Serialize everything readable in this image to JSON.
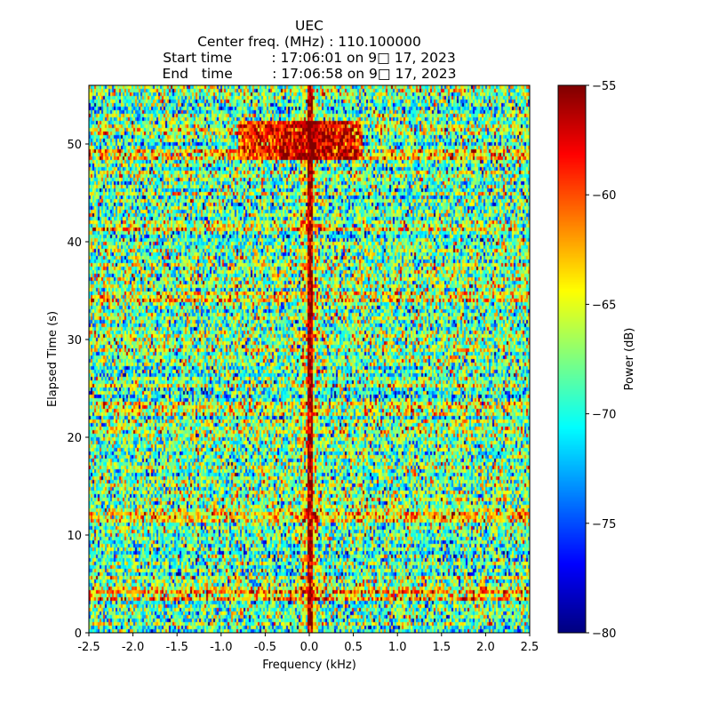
{
  "chart_data": {
    "type": "heatmap",
    "title_lines": [
      "UEC",
      "Center freq. (MHz) : 110.100000",
      "Start time         : 17:06:01 on 9□ 17, 2023",
      "End   time         : 17:06:58 on 9□ 17, 2023"
    ],
    "xlabel": "Frequency (kHz)",
    "ylabel": "Elapsed Time (s)",
    "xlim": [
      -2.5,
      2.5
    ],
    "ylim": [
      0,
      56
    ],
    "xticks": [
      -2.5,
      -2.0,
      -1.5,
      -1.0,
      -0.5,
      0.0,
      0.5,
      1.0,
      1.5,
      2.0,
      2.5
    ],
    "xtick_labels": [
      "-2.5",
      "-2.0",
      "-1.5",
      "-1.0",
      "-0.5",
      "0.0",
      "0.5",
      "1.0",
      "1.5",
      "2.0",
      "2.5"
    ],
    "yticks": [
      0,
      10,
      20,
      30,
      40,
      50
    ],
    "ytick_labels": [
      "0",
      "10",
      "20",
      "30",
      "40",
      "50"
    ],
    "colormap": "jet",
    "colorbar": {
      "label": "Power (dB)",
      "range": [
        -80,
        -55
      ],
      "ticks": [
        -80,
        -75,
        -70,
        -65,
        -60,
        -55
      ],
      "tick_labels": [
        "−80",
        "−75",
        "−70",
        "−65",
        "−60",
        "−55"
      ]
    },
    "features": {
      "background_level_db": -69,
      "carrier": {
        "freq_khz": [
          -0.02,
          0.05
        ],
        "level_db": -56
      },
      "bright_time_bands_s": [
        48.8,
        51.3,
        41.5,
        34.5,
        23,
        12,
        4
      ],
      "strong_burst": {
        "time_s": [
          48.4,
          52.2
        ],
        "freq_khz": [
          -0.8,
          0.6
        ],
        "level_db": -56
      }
    }
  }
}
